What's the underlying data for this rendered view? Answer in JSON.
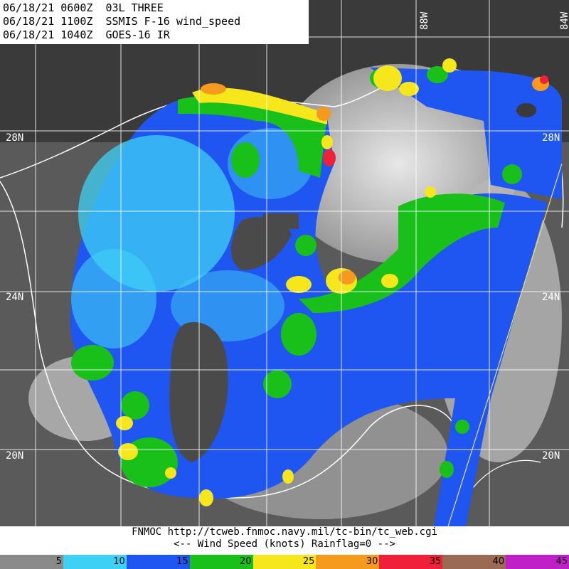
{
  "header": {
    "line1": "06/18/21 0600Z  03L THREE",
    "line2": "06/18/21 1100Z  SSMIS F-16 wind_speed",
    "line3": "06/18/21 1040Z  GOES-16 IR"
  },
  "lat_labels": [
    "28N",
    "24N",
    "20N"
  ],
  "lat_labels_right": [
    "28N",
    "24N",
    "20N"
  ],
  "lon_labels": [
    "88W",
    "84W"
  ],
  "footer": {
    "line1": "FNMOC  http://tcweb.fnmoc.navy.mil/tc-bin/tc_web.cgi",
    "line2": "<--   Wind Speed (knots) Rainflag=0  -->"
  },
  "colorbar": {
    "labels": [
      "5",
      "10",
      "15",
      "20",
      "25",
      "30",
      "35",
      "40",
      "45"
    ],
    "colors": [
      "#8a8a8a",
      "#3fd0f5",
      "#1f55f0",
      "#19c01a",
      "#f5e71c",
      "#f59a1c",
      "#f0203a",
      "#9a6a55",
      "#c020c8"
    ]
  }
}
